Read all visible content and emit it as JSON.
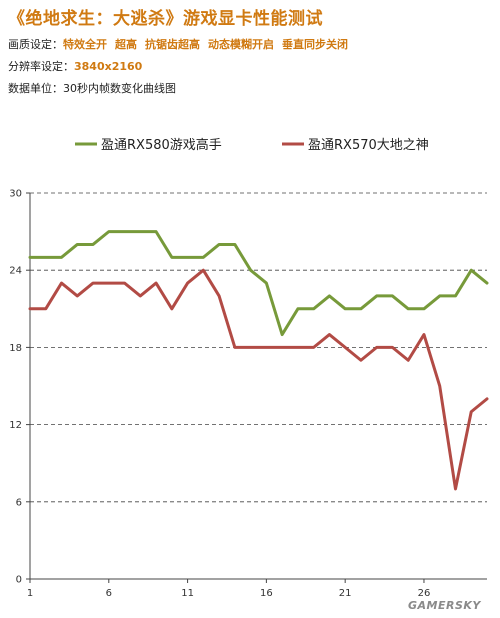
{
  "header": {
    "title": "《绝地求生：大逃杀》游戏显卡性能测试",
    "quality_label": "画质设定：",
    "quality_values": [
      "特效全开",
      "超高",
      "抗锯齿超高",
      "动态模糊开启",
      "垂直同步关闭"
    ],
    "resolution_label": "分辨率设定：",
    "resolution_value": "3840x2160",
    "unit_label": "数据单位：",
    "unit_value": "30秒内帧数变化曲线图"
  },
  "watermark": "GAMERSKY",
  "chart_data": {
    "type": "line",
    "x": [
      1,
      2,
      3,
      4,
      5,
      6,
      7,
      8,
      9,
      10,
      11,
      12,
      13,
      14,
      15,
      16,
      17,
      18,
      19,
      20,
      21,
      22,
      23,
      24,
      25,
      26,
      27,
      28,
      29,
      30
    ],
    "x_tick_labels": [
      "1",
      "6",
      "11",
      "16",
      "21",
      "26"
    ],
    "x_tick_values": [
      1,
      6,
      11,
      16,
      21,
      26
    ],
    "ylim": [
      0,
      30
    ],
    "y_ticks": [
      0,
      6,
      12,
      18,
      24,
      30
    ],
    "y_tick_labels": [
      "0",
      "6",
      "12",
      "18",
      "24",
      "30"
    ],
    "grid": "horizontal dashed",
    "legend_position": "top",
    "series": [
      {
        "name": "盈通RX580游戏高手",
        "color": "#779a3a",
        "values": [
          25,
          25,
          25,
          26,
          26,
          27,
          27,
          27,
          27,
          25,
          25,
          25,
          26,
          26,
          24,
          23,
          19,
          21,
          21,
          22,
          21,
          21,
          22,
          22,
          21,
          21,
          22,
          22,
          24,
          23
        ]
      },
      {
        "name": "盈通RX570大地之神",
        "color": "#b24b45",
        "values": [
          21,
          21,
          23,
          22,
          23,
          23,
          23,
          22,
          23,
          21,
          23,
          24,
          22,
          18,
          18,
          18,
          18,
          18,
          18,
          19,
          18,
          17,
          18,
          18,
          17,
          19,
          15,
          7,
          13,
          14
        ]
      }
    ]
  }
}
